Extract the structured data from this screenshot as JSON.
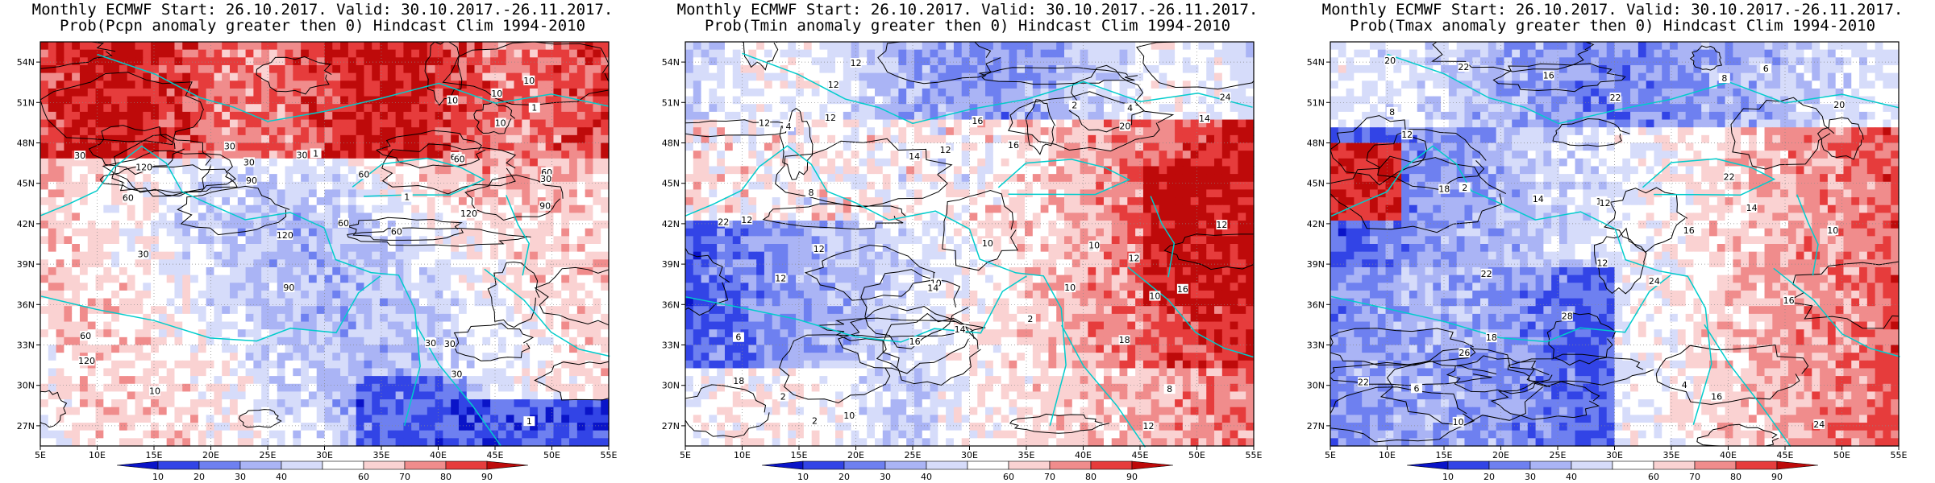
{
  "panels": [
    {
      "title_line1": "Monthly ECMWF Start: 26.10.2017. Valid: 30.10.2017.-26.11.2017.",
      "title_line2": "Prob(Pcpn anomaly greater then 0) Hindcast Clim 1994-2010",
      "contour_labels": [
        "60",
        "30",
        "60",
        "90",
        "60",
        "120",
        "60",
        "90",
        "60",
        "30",
        "120",
        "60",
        "120",
        "90",
        "120",
        "30",
        "60",
        "30",
        "60",
        "30",
        "30",
        "1",
        "10",
        "30",
        "10",
        "1",
        "10",
        "1",
        "30",
        "30",
        "10",
        "10",
        "1"
      ]
    },
    {
      "title_line1": "Monthly ECMWF Start: 26.10.2017. Valid: 30.10.2017.-26.11.2017.",
      "title_line2": "Prob(Tmin anomaly greater then 0) Hindcast Clim 1994-2010",
      "contour_labels": [
        "2",
        "2",
        "2",
        "4",
        "2",
        "4",
        "6",
        "10",
        "12",
        "12",
        "8",
        "10",
        "12",
        "14",
        "16",
        "18",
        "12",
        "10",
        "12",
        "8",
        "10",
        "14",
        "12",
        "16",
        "14",
        "12",
        "12",
        "10",
        "14",
        "12",
        "16",
        "18",
        "20",
        "12",
        "10",
        "12",
        "14",
        "16",
        "22",
        "24"
      ]
    },
    {
      "title_line1": "Monthly ECMWF Start: 26.10.2017. Valid: 30.10.2017.-26.11.2017.",
      "title_line2": "Prob(Tmax anomaly greater then 0) Hindcast Clim 1994-2010",
      "contour_labels": [
        "2",
        "4",
        "6",
        "8",
        "10",
        "6",
        "10",
        "8",
        "12",
        "14",
        "16",
        "12",
        "14",
        "18",
        "16",
        "20",
        "22",
        "22",
        "22",
        "22",
        "20",
        "24",
        "16",
        "18",
        "12",
        "16",
        "14",
        "22",
        "24",
        "28",
        "26"
      ]
    }
  ],
  "axes": {
    "lon_labels": [
      "5E",
      "10E",
      "15E",
      "20E",
      "25E",
      "30E",
      "35E",
      "40E",
      "45E",
      "50E",
      "55E"
    ],
    "lat_labels": [
      "54N",
      "51N",
      "48N",
      "45N",
      "42N",
      "39N",
      "36N",
      "33N",
      "30N",
      "27N"
    ]
  },
  "colorbar": {
    "labels": [
      "10",
      "20",
      "30",
      "40",
      "60",
      "70",
      "80",
      "90"
    ],
    "colors": [
      "#0a14c8",
      "#3244e6",
      "#6e80f0",
      "#aab4f5",
      "#d6dcfa",
      "#ffffff",
      "#fad2d2",
      "#f08c8c",
      "#e63c3c",
      "#be0a0a"
    ]
  },
  "colors": {
    "contour": "#000000",
    "coastline": "#00cccc",
    "grid": "#888888"
  }
}
